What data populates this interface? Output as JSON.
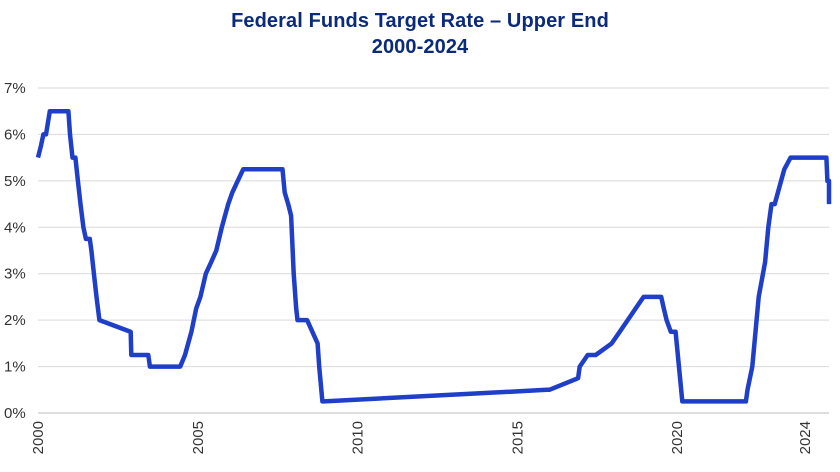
{
  "chart_data": {
    "type": "line",
    "title": "Federal Funds Target Rate – Upper End",
    "subtitle": "2000-2024",
    "xlabel": "",
    "ylabel": "",
    "xlim": [
      2000,
      2024.75
    ],
    "ylim": [
      0,
      7
    ],
    "x_ticks": [
      2000,
      2005,
      2010,
      2015,
      2020,
      2024
    ],
    "x_tick_labels": [
      "2000",
      "2005",
      "2010",
      "2015",
      "2020",
      "2024"
    ],
    "y_ticks": [
      0,
      1,
      2,
      3,
      4,
      5,
      6,
      7
    ],
    "y_tick_labels": [
      "0%",
      "1%",
      "2%",
      "3%",
      "4%",
      "5%",
      "6%",
      "7%"
    ],
    "grid": "horizontal",
    "color": "#1f3fc8",
    "series": [
      {
        "x": [
          2000.0,
          2000.09,
          2000.17,
          2000.25,
          2000.37,
          2000.45,
          2000.7,
          2000.95,
          2001.0,
          2001.08,
          2001.17,
          2001.25,
          2001.33,
          2001.42,
          2001.5,
          2001.62,
          2001.67,
          2001.75,
          2001.83,
          2001.92,
          2002.9,
          2002.92,
          2003.45,
          2003.5,
          2004.45,
          2004.6,
          2004.7,
          2004.8,
          2004.95,
          2005.08,
          2005.25,
          2005.42,
          2005.58,
          2005.75,
          2005.95,
          2006.08,
          2006.25,
          2006.42,
          2006.5,
          2007.65,
          2007.72,
          2007.83,
          2007.92,
          2008.0,
          2008.08,
          2008.12,
          2008.25,
          2008.33,
          2008.42,
          2008.75,
          2008.8,
          2008.9,
          2008.95,
          2015.92,
          2016.0,
          2016.9,
          2016.95,
          2017.2,
          2017.45,
          2017.95,
          2018.2,
          2018.45,
          2018.7,
          2018.95,
          2019.5,
          2019.58,
          2019.67,
          2019.8,
          2019.95,
          2020.16,
          2020.2,
          2022.15,
          2022.2,
          2022.35,
          2022.45,
          2022.55,
          2022.75,
          2022.85,
          2022.95,
          2023.05,
          2023.15,
          2023.25,
          2023.35,
          2023.55,
          2023.6,
          2024.67,
          2024.7,
          2024.82,
          2024.85,
          2024.95,
          2025.0
        ],
        "y": [
          5.5,
          5.75,
          6.0,
          6.0,
          6.5,
          6.5,
          6.5,
          6.5,
          6.0,
          5.5,
          5.5,
          5.0,
          4.5,
          4.0,
          3.75,
          3.75,
          3.5,
          3.0,
          2.5,
          2.0,
          1.75,
          1.25,
          1.25,
          1.0,
          1.0,
          1.25,
          1.5,
          1.75,
          2.25,
          2.5,
          3.0,
          3.25,
          3.5,
          4.0,
          4.5,
          4.75,
          5.0,
          5.25,
          5.25,
          5.25,
          4.75,
          4.5,
          4.25,
          3.0,
          2.25,
          2.0,
          2.0,
          2.0,
          2.0,
          1.5,
          1.0,
          0.25,
          0.25,
          0.5,
          0.5,
          0.75,
          1.0,
          1.25,
          1.25,
          1.5,
          1.75,
          2.0,
          2.25,
          2.5,
          2.5,
          2.25,
          2.0,
          1.75,
          1.75,
          0.25,
          0.25,
          0.25,
          0.5,
          1.0,
          1.75,
          2.5,
          3.25,
          4.0,
          4.5,
          4.5,
          4.75,
          5.0,
          5.25,
          5.5,
          5.5,
          5.5,
          5.0,
          5.0,
          4.75,
          4.5,
          4.5
        ]
      }
    ]
  }
}
